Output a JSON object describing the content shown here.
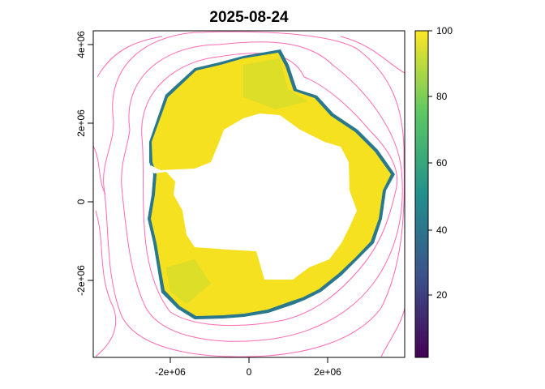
{
  "title": "2025-08-24",
  "x_axis": {
    "ticks": [
      {
        "value": -2000000,
        "label": "-2e+06"
      },
      {
        "value": 0,
        "label": "0"
      },
      {
        "value": 2000000,
        "label": "2e+06"
      }
    ]
  },
  "y_axis": {
    "ticks": [
      {
        "value": -2000000,
        "label": "-2e+06"
      },
      {
        "value": 0,
        "label": "0"
      },
      {
        "value": 2000000,
        "label": "2e+06"
      },
      {
        "value": 4000000,
        "label": "4e+06"
      }
    ]
  },
  "legend": {
    "ticks": [
      {
        "value": 20,
        "label": "20"
      },
      {
        "value": 40,
        "label": "40"
      },
      {
        "value": 60,
        "label": "60"
      },
      {
        "value": 80,
        "label": "80"
      },
      {
        "value": 100,
        "label": "100"
      }
    ],
    "range": [
      0,
      100
    ],
    "palette": [
      "#440154",
      "#3b528b",
      "#21908c",
      "#5dc863",
      "#fde725"
    ]
  },
  "colors": {
    "ice_high": "#f5e11f",
    "ice_edge": "#2a788e",
    "contour": "#ff69b4",
    "frame": "#000000"
  }
}
